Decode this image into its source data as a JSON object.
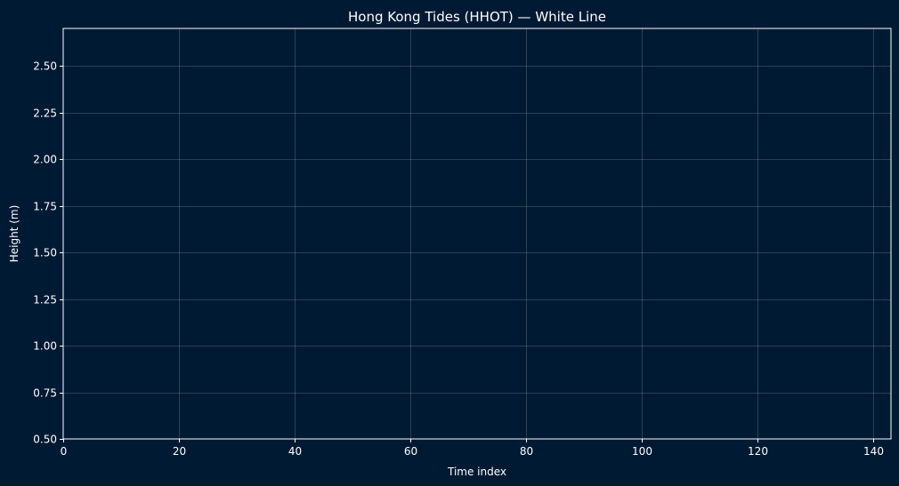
{
  "chart_data": {
    "type": "line",
    "title": "Hong Kong Tides (HHOT) — White Line",
    "xlabel": "Time index",
    "ylabel": "Height (m)",
    "xlim": [
      0,
      143
    ],
    "ylim": [
      0.5,
      2.7
    ],
    "x_ticks": [
      0,
      20,
      40,
      60,
      80,
      100,
      120,
      140
    ],
    "y_ticks": [
      0.5,
      0.75,
      1.0,
      1.25,
      1.5,
      1.75,
      2.0,
      2.25,
      2.5
    ],
    "grid": true,
    "series": [
      {
        "color": "#ffffff",
        "x": [],
        "values": []
      }
    ],
    "colors": {
      "background": "#001a33",
      "axes": "#ffffff",
      "grid": "#ffffff",
      "text": "#ffffff"
    }
  }
}
